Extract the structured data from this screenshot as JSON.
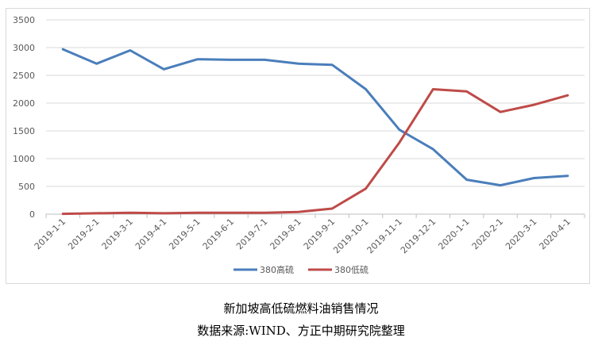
{
  "chart_data": {
    "type": "line",
    "title": "",
    "xlabel": "",
    "ylabel": "",
    "categories": [
      "2019-1-1",
      "2019-2-1",
      "2019-3-1",
      "2019-4-1",
      "2019-5-1",
      "2019-6-1",
      "2019-7-1",
      "2019-8-1",
      "2019-9-1",
      "2019-10-1",
      "2019-11-1",
      "2019-12-1",
      "2020-1-1",
      "2020-2-1",
      "2020-3-1",
      "2020-4-1"
    ],
    "y_ticks": [
      "0",
      "500",
      "1000",
      "1500",
      "2000",
      "2500",
      "3000",
      "3500"
    ],
    "ylim": [
      0,
      3500
    ],
    "grid": true,
    "legend_position": "bottom",
    "series": [
      {
        "name": "380高硫",
        "color": "#4a7ebb",
        "values": [
          2970,
          2710,
          2950,
          2610,
          2790,
          2780,
          2780,
          2710,
          2690,
          2250,
          1520,
          1170,
          620,
          520,
          650,
          690
        ]
      },
      {
        "name": "380低硫",
        "color": "#be4b48",
        "values": [
          5,
          15,
          25,
          15,
          25,
          25,
          25,
          40,
          100,
          460,
          1290,
          2250,
          2210,
          1840,
          1970,
          2140
        ]
      }
    ]
  },
  "captions": {
    "title": "新加坡高低硫燃料油销售情况",
    "source": "数据来源:WIND、方正中期研究院整理"
  }
}
